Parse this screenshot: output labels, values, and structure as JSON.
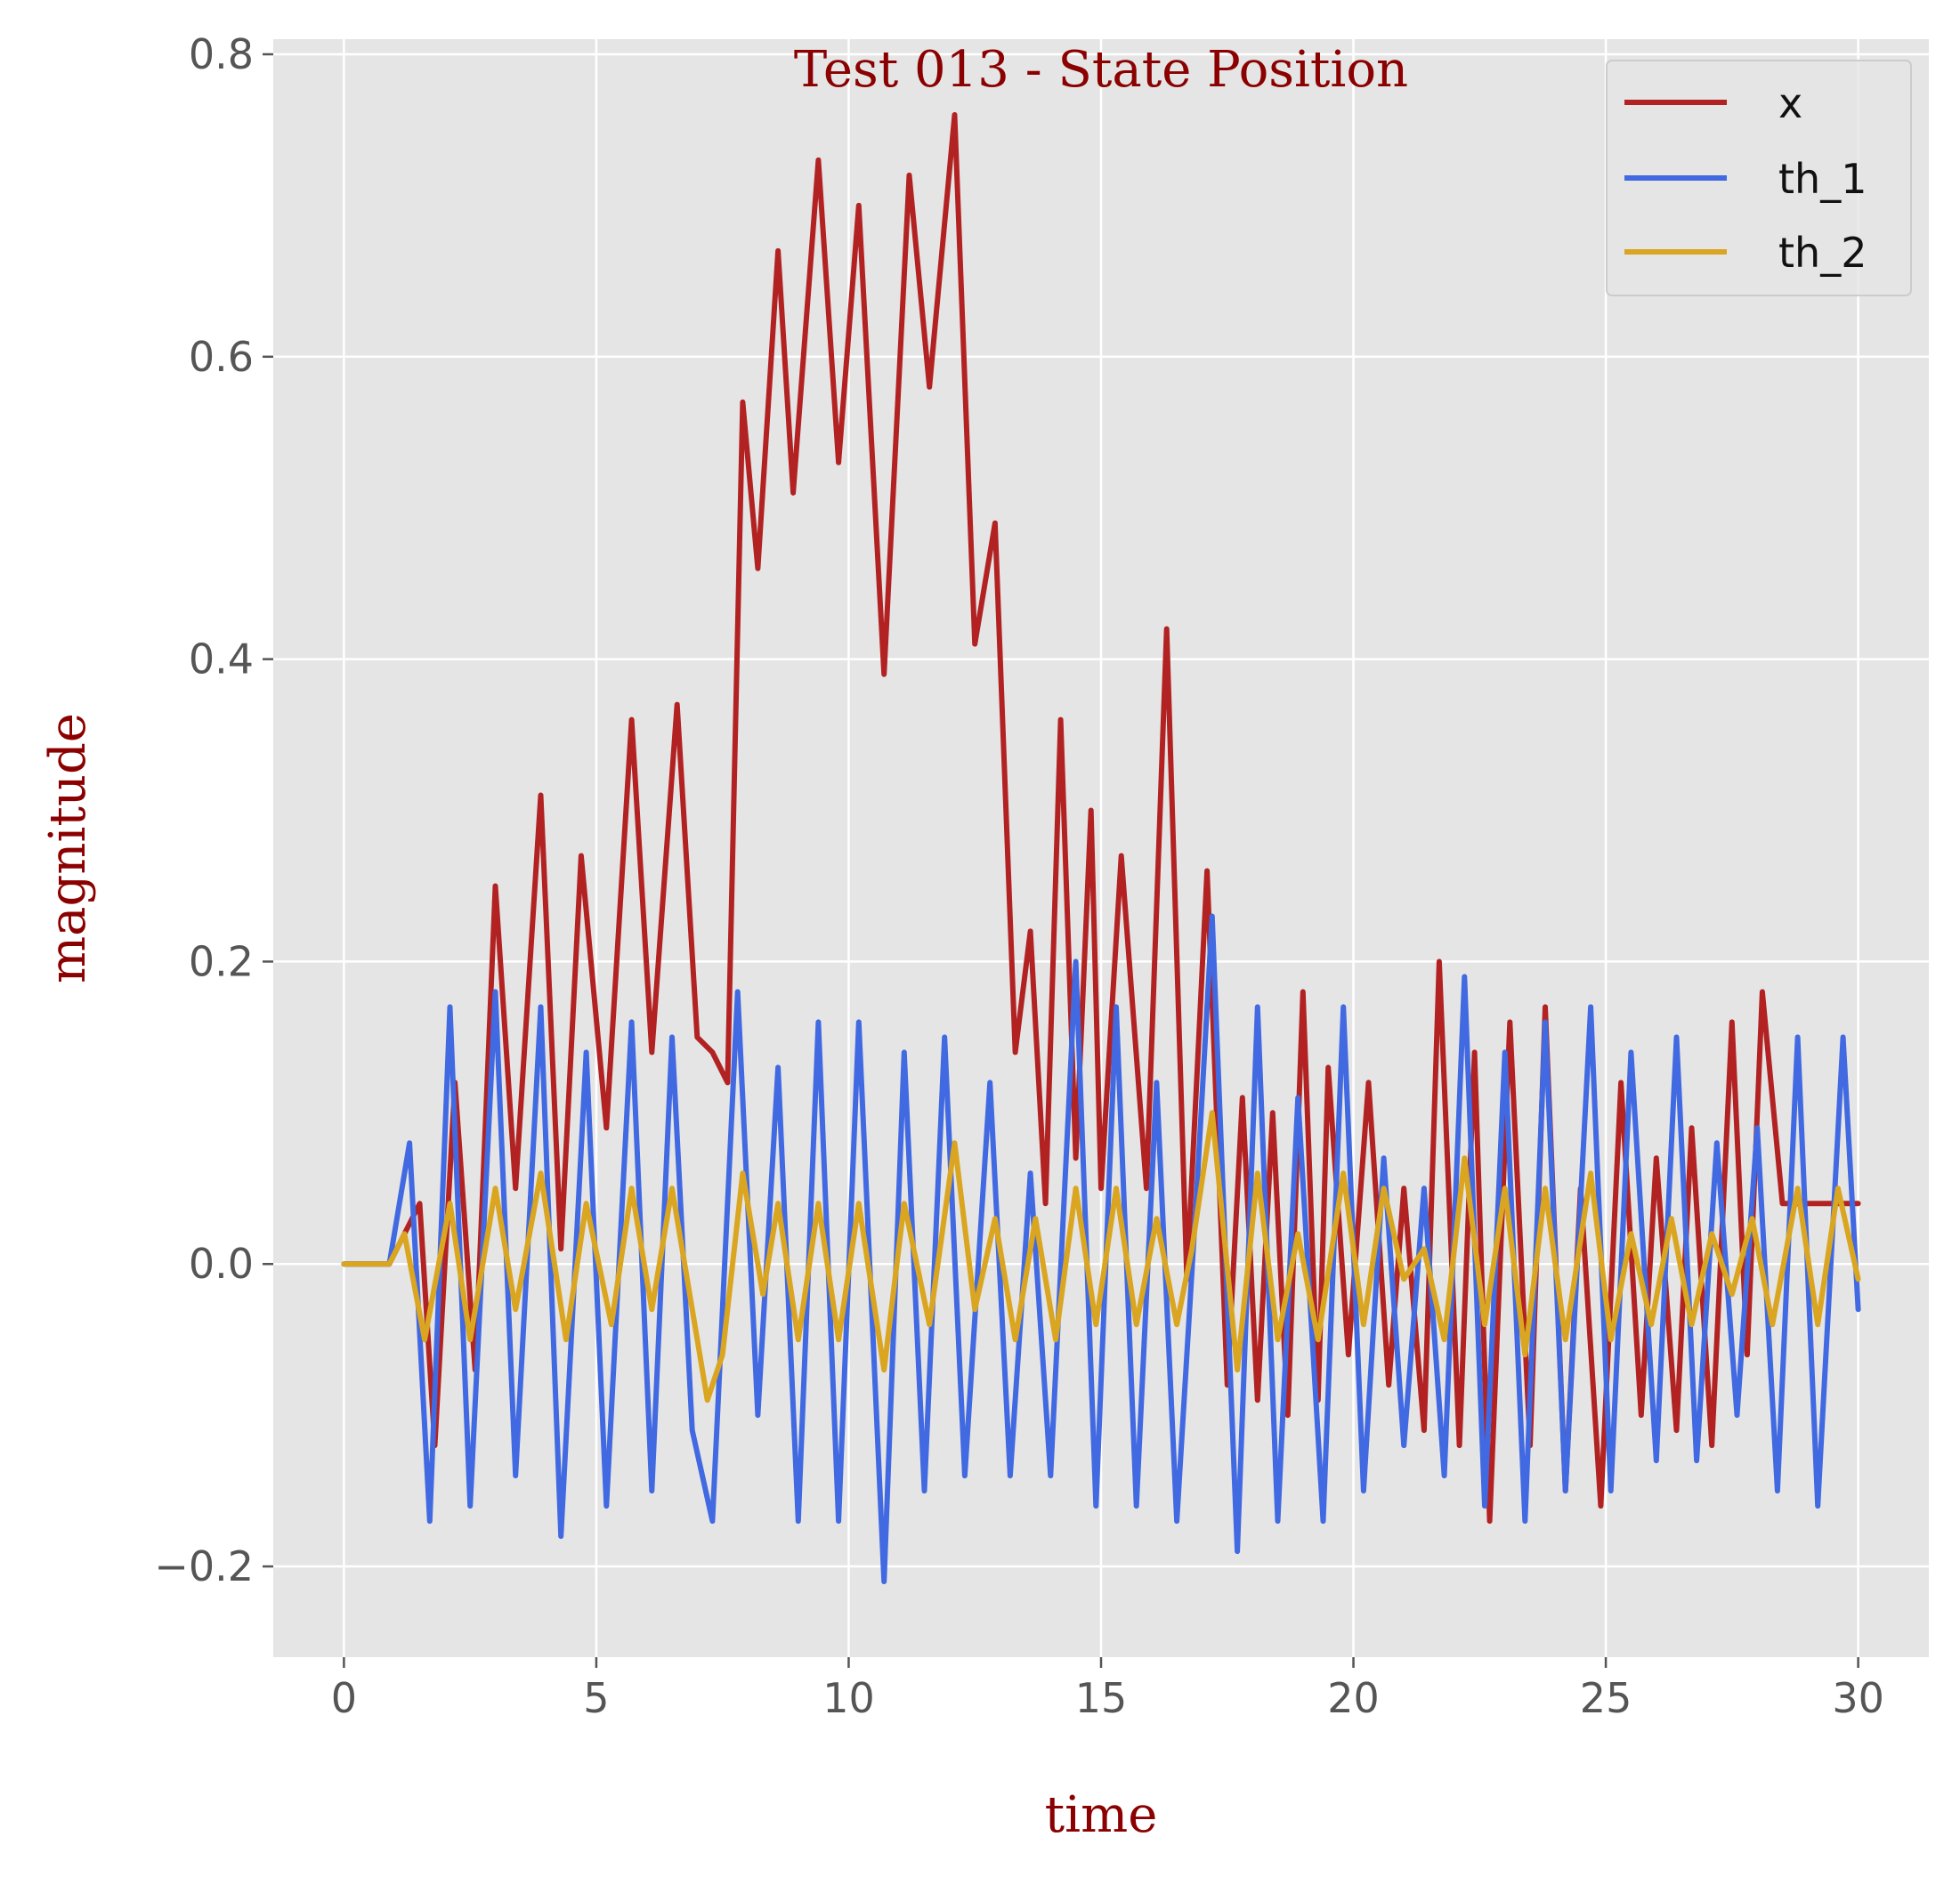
{
  "chart_data": {
    "type": "line",
    "title": "Test 013 - State Position",
    "xlabel": "time",
    "ylabel": "magnitude",
    "xlim": [
      -1.4,
      31.4
    ],
    "ylim": [
      -0.26,
      0.81
    ],
    "xticks": [
      0,
      5,
      10,
      15,
      20,
      25,
      30
    ],
    "xtick_labels": [
      "0",
      "5",
      "10",
      "15",
      "20",
      "25",
      "30"
    ],
    "yticks": [
      -0.2,
      0.0,
      0.2,
      0.4,
      0.6,
      0.8
    ],
    "ytick_labels": [
      "−0.2",
      "0.0",
      "0.2",
      "0.4",
      "0.6",
      "0.8"
    ],
    "grid": true,
    "legend_position": "top-right",
    "series": [
      {
        "name": "x",
        "color": "#b22222",
        "x": [
          0,
          0.9,
          1.2,
          1.5,
          1.8,
          2.2,
          2.6,
          3.0,
          3.4,
          3.9,
          4.3,
          4.7,
          5.2,
          5.7,
          6.1,
          6.6,
          7.0,
          7.3,
          7.6,
          7.9,
          8.2,
          8.6,
          8.9,
          9.4,
          9.8,
          10.2,
          10.7,
          11.2,
          11.6,
          12.1,
          12.5,
          12.9,
          13.3,
          13.6,
          13.9,
          14.2,
          14.5,
          14.8,
          15.0,
          15.4,
          15.9,
          16.3,
          16.7,
          17.1,
          17.5,
          17.8,
          18.1,
          18.4,
          18.7,
          19.0,
          19.3,
          19.5,
          19.9,
          20.3,
          20.7,
          21.0,
          21.4,
          21.7,
          22.1,
          22.4,
          22.7,
          23.1,
          23.5,
          23.8,
          24.2,
          24.5,
          24.9,
          25.3,
          25.7,
          26.0,
          26.4,
          26.7,
          27.1,
          27.5,
          27.8,
          28.1,
          28.5,
          28.9,
          29.3,
          29.6,
          29.9,
          30.0
        ],
        "values": [
          0,
          0,
          0.02,
          0.04,
          -0.12,
          0.12,
          -0.07,
          0.25,
          0.05,
          0.31,
          0.01,
          0.27,
          0.09,
          0.36,
          0.14,
          0.37,
          0.15,
          0.14,
          0.12,
          0.57,
          0.46,
          0.67,
          0.51,
          0.73,
          0.53,
          0.7,
          0.39,
          0.72,
          0.58,
          0.76,
          0.41,
          0.49,
          0.14,
          0.22,
          0.04,
          0.36,
          0.07,
          0.3,
          0.05,
          0.27,
          0.05,
          0.42,
          -0.01,
          0.26,
          -0.08,
          0.11,
          -0.09,
          0.1,
          -0.1,
          0.18,
          -0.09,
          0.13,
          -0.06,
          0.12,
          -0.08,
          0.05,
          -0.11,
          0.2,
          -0.12,
          0.14,
          -0.17,
          0.16,
          -0.12,
          0.17,
          -0.15,
          0.05,
          -0.16,
          0.12,
          -0.1,
          0.07,
          -0.11,
          0.09,
          -0.12,
          0.16,
          -0.06,
          0.18,
          0.04,
          0.04,
          0.04,
          0.04,
          0.04,
          0.04
        ]
      },
      {
        "name": "th_1",
        "color": "#4169e1",
        "x": [
          0,
          0.9,
          1.3,
          1.7,
          2.1,
          2.5,
          3.0,
          3.4,
          3.9,
          4.3,
          4.8,
          5.2,
          5.7,
          6.1,
          6.5,
          6.9,
          7.3,
          7.8,
          8.2,
          8.6,
          9.0,
          9.4,
          9.8,
          10.2,
          10.7,
          11.1,
          11.5,
          11.9,
          12.3,
          12.8,
          13.2,
          13.6,
          14.0,
          14.5,
          14.9,
          15.3,
          15.7,
          16.1,
          16.5,
          16.9,
          17.2,
          17.7,
          18.1,
          18.5,
          18.9,
          19.4,
          19.8,
          20.2,
          20.6,
          21.0,
          21.4,
          21.8,
          22.2,
          22.6,
          23.0,
          23.4,
          23.8,
          24.2,
          24.7,
          25.1,
          25.5,
          26.0,
          26.4,
          26.8,
          27.2,
          27.6,
          28.0,
          28.4,
          28.8,
          29.2,
          29.7,
          30.0
        ],
        "values": [
          0,
          0,
          0.08,
          -0.17,
          0.17,
          -0.16,
          0.18,
          -0.14,
          0.17,
          -0.18,
          0.14,
          -0.16,
          0.16,
          -0.15,
          0.15,
          -0.11,
          -0.17,
          0.18,
          -0.1,
          0.13,
          -0.17,
          0.16,
          -0.17,
          0.16,
          -0.21,
          0.14,
          -0.15,
          0.15,
          -0.14,
          0.12,
          -0.14,
          0.06,
          -0.14,
          0.2,
          -0.16,
          0.17,
          -0.16,
          0.12,
          -0.17,
          0.05,
          0.23,
          -0.19,
          0.17,
          -0.17,
          0.11,
          -0.17,
          0.17,
          -0.15,
          0.07,
          -0.12,
          0.05,
          -0.14,
          0.19,
          -0.16,
          0.14,
          -0.17,
          0.16,
          -0.15,
          0.17,
          -0.15,
          0.14,
          -0.13,
          0.15,
          -0.13,
          0.08,
          -0.1,
          0.09,
          -0.15,
          0.15,
          -0.16,
          0.15,
          -0.03
        ]
      },
      {
        "name": "th_2",
        "color": "#daa520",
        "x": [
          0,
          0.9,
          1.2,
          1.6,
          2.1,
          2.5,
          3.0,
          3.4,
          3.9,
          4.4,
          4.8,
          5.3,
          5.7,
          6.1,
          6.5,
          6.9,
          7.2,
          7.5,
          7.9,
          8.3,
          8.6,
          9.0,
          9.4,
          9.8,
          10.2,
          10.7,
          11.1,
          11.6,
          12.1,
          12.5,
          12.9,
          13.3,
          13.7,
          14.1,
          14.5,
          14.9,
          15.3,
          15.7,
          16.1,
          16.5,
          16.8,
          17.2,
          17.7,
          18.1,
          18.5,
          18.9,
          19.3,
          19.8,
          20.2,
          20.6,
          21.0,
          21.4,
          21.8,
          22.2,
          22.6,
          23.0,
          23.4,
          23.8,
          24.2,
          24.7,
          25.1,
          25.5,
          25.9,
          26.3,
          26.7,
          27.1,
          27.5,
          27.9,
          28.3,
          28.8,
          29.2,
          29.6,
          30.0
        ],
        "values": [
          0,
          0,
          0.02,
          -0.05,
          0.04,
          -0.05,
          0.05,
          -0.03,
          0.06,
          -0.05,
          0.04,
          -0.04,
          0.05,
          -0.03,
          0.05,
          -0.03,
          -0.09,
          -0.06,
          0.06,
          -0.02,
          0.04,
          -0.05,
          0.04,
          -0.05,
          0.04,
          -0.07,
          0.04,
          -0.04,
          0.08,
          -0.03,
          0.03,
          -0.05,
          0.03,
          -0.05,
          0.05,
          -0.04,
          0.05,
          -0.04,
          0.03,
          -0.04,
          0.01,
          0.1,
          -0.07,
          0.06,
          -0.05,
          0.02,
          -0.05,
          0.06,
          -0.04,
          0.05,
          -0.01,
          0.01,
          -0.05,
          0.07,
          -0.04,
          0.05,
          -0.06,
          0.05,
          -0.05,
          0.06,
          -0.05,
          0.02,
          -0.04,
          0.03,
          -0.04,
          0.02,
          -0.02,
          0.03,
          -0.04,
          0.05,
          -0.04,
          0.05,
          -0.01
        ]
      }
    ]
  }
}
